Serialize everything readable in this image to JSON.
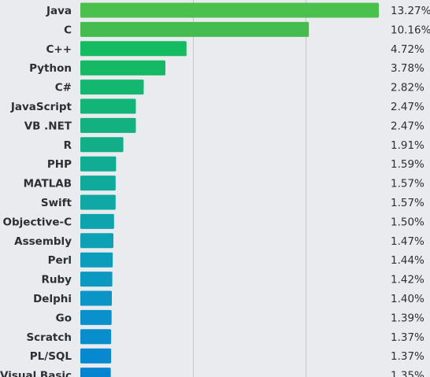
{
  "chart_data": {
    "type": "bar",
    "orientation": "horizontal",
    "categories": [
      "Java",
      "C",
      "C++",
      "Python",
      "C#",
      "JavaScript",
      "VB .NET",
      "R",
      "PHP",
      "MATLAB",
      "Swift",
      "Objective-C",
      "Assembly",
      "Perl",
      "Ruby",
      "Delphi",
      "Go",
      "Scratch",
      "PL/SQL",
      "Visual Basic"
    ],
    "values": [
      13.27,
      10.16,
      4.72,
      3.78,
      2.82,
      2.47,
      2.47,
      1.91,
      1.59,
      1.57,
      1.57,
      1.5,
      1.47,
      1.44,
      1.42,
      1.4,
      1.39,
      1.37,
      1.37,
      1.35
    ],
    "value_labels": [
      "13.27%",
      "10.16%",
      "4.72%",
      "3.78%",
      "2.82%",
      "2.47%",
      "2.47%",
      "1.91%",
      "1.59%",
      "1.57%",
      "1.57%",
      "1.50%",
      "1.47%",
      "1.44%",
      "1.42%",
      "1.40%",
      "1.39%",
      "1.37%",
      "1.37%",
      "1.35%"
    ],
    "bar_colors": [
      "#4cc04c",
      "#44bc4f",
      "#14bb60",
      "#15b965",
      "#13b76f",
      "#12b478",
      "#12b17f",
      "#11ae88",
      "#10ac93",
      "#10aa9c",
      "#0fa8a5",
      "#0ea4ad",
      "#0da1b5",
      "#0c9dbc",
      "#0b99c2",
      "#0a95c7",
      "#0991cb",
      "#088dcd",
      "#0789cf",
      "#0684cf"
    ],
    "title": "",
    "xlabel": "",
    "ylabel": "",
    "xlim": [
      0,
      13.27
    ],
    "grid": true,
    "gridlines_at": [
      5,
      10
    ],
    "legend": "none"
  }
}
